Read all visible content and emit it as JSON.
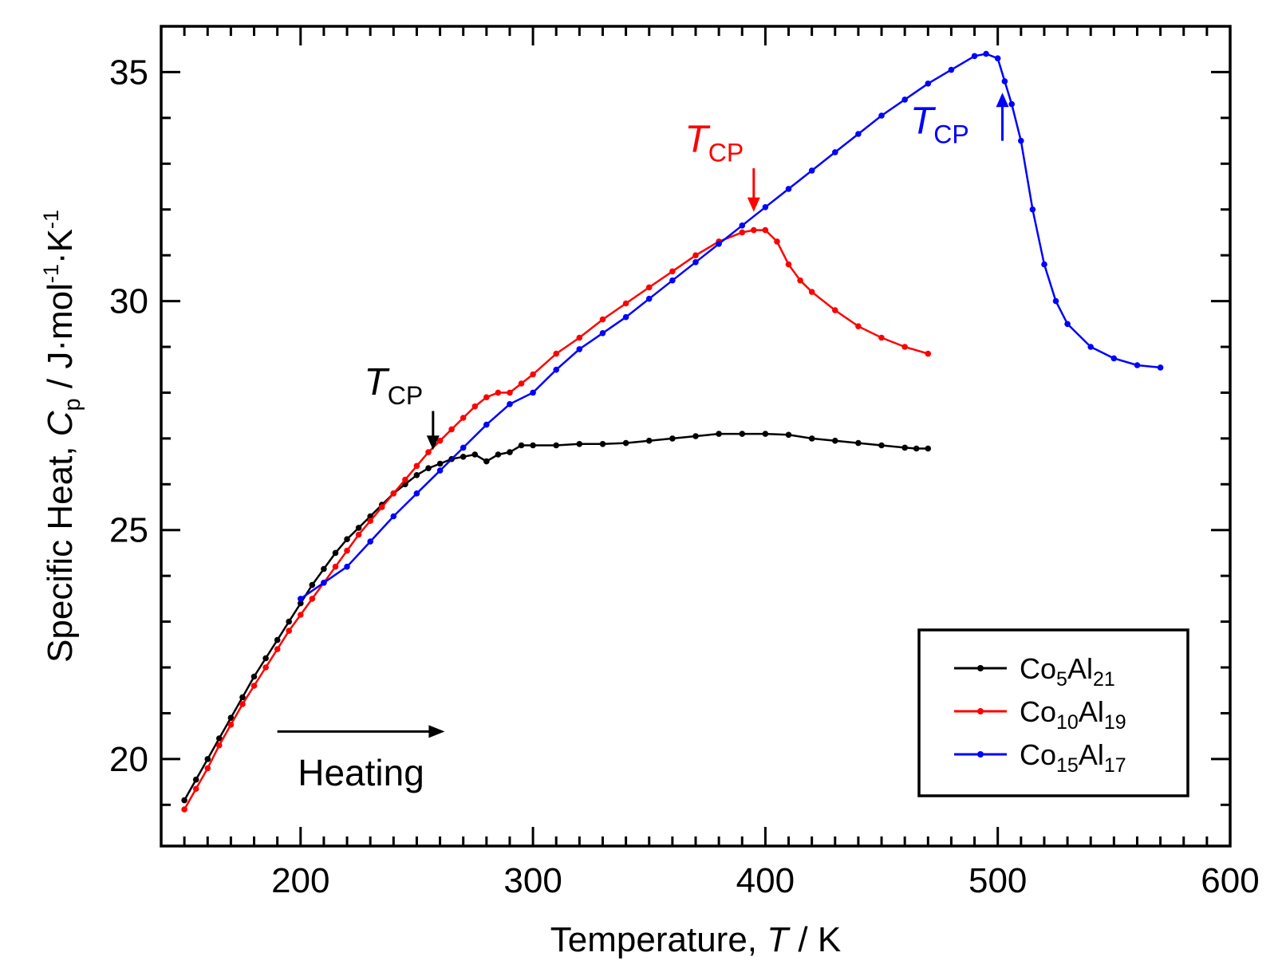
{
  "chart_data": {
    "type": "line",
    "title": "",
    "xlabel": {
      "prefix": "Temperature, ",
      "var": "T",
      "suffix": " / K"
    },
    "ylabel": {
      "prefix": "Specific Heat, ",
      "var": "C",
      "sub": "p",
      "units": " / J·mol",
      "exp1": "-1",
      "mid": "·K",
      "exp2": "-1"
    },
    "xlim": [
      140,
      600
    ],
    "ylim": [
      18.1,
      36.0
    ],
    "xticks": [
      200,
      300,
      400,
      500,
      600
    ],
    "xtick_labels": [
      "200",
      "300",
      "400",
      "500",
      "600"
    ],
    "yticks": [
      20,
      25,
      30,
      35
    ],
    "ytick_labels": [
      "20",
      "25",
      "30",
      "35"
    ],
    "grid": false,
    "legend_position": "bottom-right",
    "series": [
      {
        "name": "Co5Al21",
        "label": {
          "a": "Co",
          "a_sub": "5",
          "b": "Al",
          "b_sub": "21"
        },
        "color": "#000000",
        "x": [
          150,
          155,
          160,
          165,
          170,
          175,
          180,
          185,
          190,
          195,
          200,
          205,
          210,
          215,
          220,
          225,
          230,
          235,
          240,
          245,
          250,
          255,
          260,
          265,
          270,
          275,
          280,
          285,
          290,
          295,
          300,
          310,
          320,
          330,
          340,
          350,
          360,
          370,
          380,
          390,
          400,
          410,
          420,
          430,
          440,
          450,
          460,
          465,
          470
        ],
        "y": [
          19.1,
          19.55,
          20.0,
          20.45,
          20.9,
          21.35,
          21.8,
          22.2,
          22.6,
          23.0,
          23.4,
          23.8,
          24.15,
          24.5,
          24.8,
          25.05,
          25.3,
          25.55,
          25.8,
          26.0,
          26.2,
          26.35,
          26.45,
          26.55,
          26.6,
          26.65,
          26.5,
          26.65,
          26.7,
          26.85,
          26.85,
          26.85,
          26.88,
          26.88,
          26.9,
          26.95,
          27.0,
          27.05,
          27.1,
          27.1,
          27.1,
          27.08,
          27.0,
          26.95,
          26.9,
          26.85,
          26.8,
          26.78,
          26.78
        ]
      },
      {
        "name": "Co10Al19",
        "label": {
          "a": "Co",
          "a_sub": "10",
          "b": "Al",
          "b_sub": "19"
        },
        "color": "#ff0000",
        "x": [
          150,
          155,
          160,
          165,
          170,
          175,
          180,
          185,
          190,
          195,
          200,
          205,
          210,
          215,
          220,
          225,
          230,
          235,
          240,
          245,
          250,
          255,
          260,
          265,
          270,
          275,
          280,
          285,
          290,
          295,
          300,
          310,
          320,
          330,
          340,
          350,
          360,
          370,
          380,
          390,
          395,
          400,
          405,
          410,
          415,
          420,
          430,
          440,
          450,
          460,
          470
        ],
        "y": [
          18.9,
          19.35,
          19.8,
          20.3,
          20.75,
          21.2,
          21.6,
          22.0,
          22.4,
          22.8,
          23.15,
          23.5,
          23.85,
          24.2,
          24.55,
          24.9,
          25.2,
          25.5,
          25.8,
          26.1,
          26.4,
          26.7,
          26.95,
          27.2,
          27.45,
          27.7,
          27.9,
          28.0,
          28.0,
          28.2,
          28.4,
          28.85,
          29.2,
          29.6,
          29.95,
          30.3,
          30.65,
          31.0,
          31.3,
          31.5,
          31.55,
          31.55,
          31.3,
          30.8,
          30.45,
          30.2,
          29.8,
          29.45,
          29.2,
          29.0,
          28.85
        ]
      },
      {
        "name": "Co15Al17",
        "label": {
          "a": "Co",
          "a_sub": "15",
          "b": "Al",
          "b_sub": "17"
        },
        "color": "#0000ff",
        "x": [
          200,
          210,
          220,
          230,
          240,
          250,
          260,
          270,
          280,
          290,
          300,
          310,
          320,
          330,
          340,
          350,
          360,
          370,
          380,
          390,
          400,
          410,
          420,
          430,
          440,
          450,
          460,
          470,
          480,
          490,
          495,
          500,
          503,
          506,
          510,
          515,
          520,
          525,
          530,
          540,
          550,
          560,
          570
        ],
        "y": [
          23.5,
          23.85,
          24.2,
          24.75,
          25.3,
          25.8,
          26.3,
          26.8,
          27.3,
          27.75,
          28.0,
          28.5,
          28.95,
          29.3,
          29.65,
          30.05,
          30.45,
          30.85,
          31.25,
          31.65,
          32.05,
          32.45,
          32.85,
          33.25,
          33.65,
          34.05,
          34.4,
          34.75,
          35.05,
          35.35,
          35.4,
          35.3,
          34.8,
          34.3,
          33.5,
          32.0,
          30.8,
          30.0,
          29.5,
          29.0,
          28.75,
          28.6,
          28.55
        ]
      }
    ],
    "annotations": [
      {
        "id": "black",
        "text": "T",
        "sub": "CP",
        "color": "#000000",
        "arrow_x": 257,
        "arrow_from_y": 27.6,
        "arrow_to_y": 26.75,
        "text_x": 240,
        "text_y": 28.2,
        "direction": "down"
      },
      {
        "id": "red",
        "text": "T",
        "sub": "CP",
        "color": "#ff0000",
        "arrow_x": 395,
        "arrow_from_y": 32.9,
        "arrow_to_y": 31.95,
        "text_x": 378,
        "text_y": 33.5,
        "direction": "down"
      },
      {
        "id": "blue",
        "text": "T",
        "sub": "CP",
        "color": "#0000ff",
        "arrow_x": 502,
        "arrow_from_y": 33.5,
        "arrow_to_y": 34.55,
        "text_x": 475,
        "text_y": 33.9,
        "direction": "up"
      },
      {
        "id": "heating",
        "text": "Heating",
        "color": "#000000",
        "arrow_x": 190,
        "arrow_to_x": 262,
        "arrow_y": 20.6,
        "text_x": 226,
        "text_y": 19.7,
        "direction": "right"
      }
    ]
  }
}
